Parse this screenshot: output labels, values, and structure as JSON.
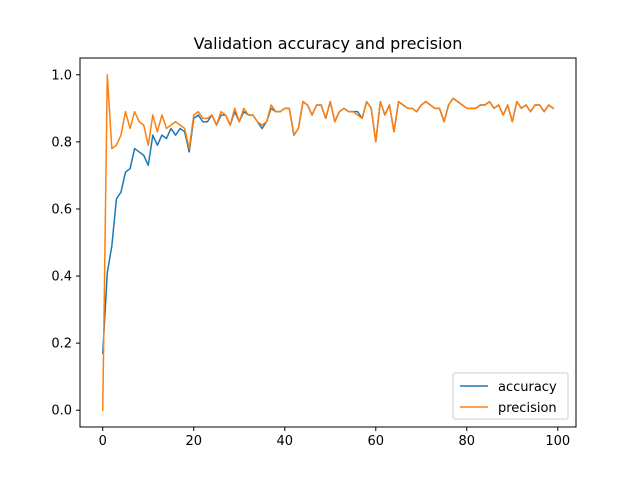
{
  "chart_data": {
    "type": "line",
    "title": "Validation accuracy and precision",
    "xlabel": "",
    "ylabel": "",
    "xlim": [
      -5,
      104
    ],
    "ylim": [
      -0.05,
      1.05
    ],
    "xticks": [
      0,
      20,
      40,
      60,
      80,
      100
    ],
    "yticks": [
      0.0,
      0.2,
      0.4,
      0.6,
      0.8,
      1.0
    ],
    "xtick_labels": [
      "0",
      "20",
      "40",
      "60",
      "80",
      "100"
    ],
    "ytick_labels": [
      "0.0",
      "0.2",
      "0.4",
      "0.6",
      "0.8",
      "1.0"
    ],
    "grid": false,
    "legend": {
      "placement": "lower-right"
    },
    "x": [
      0,
      1,
      2,
      3,
      4,
      5,
      6,
      7,
      8,
      9,
      10,
      11,
      12,
      13,
      14,
      15,
      16,
      17,
      18,
      19,
      20,
      21,
      22,
      23,
      24,
      25,
      26,
      27,
      28,
      29,
      30,
      31,
      32,
      33,
      34,
      35,
      36,
      37,
      38,
      39,
      40,
      41,
      42,
      43,
      44,
      45,
      46,
      47,
      48,
      49,
      50,
      51,
      52,
      53,
      54,
      55,
      56,
      57,
      58,
      59,
      60,
      61,
      62,
      63,
      64,
      65,
      66,
      67,
      68,
      69,
      70,
      71,
      72,
      73,
      74,
      75,
      76,
      77,
      78,
      79,
      80,
      81,
      82,
      83,
      84,
      85,
      86,
      87,
      88,
      89,
      90,
      91,
      92,
      93,
      94,
      95,
      96,
      97,
      98,
      99
    ],
    "series": [
      {
        "name": "accuracy",
        "color": "#1f77b4",
        "values": [
          0.17,
          0.41,
          0.49,
          0.63,
          0.65,
          0.71,
          0.72,
          0.78,
          0.77,
          0.76,
          0.73,
          0.82,
          0.79,
          0.82,
          0.81,
          0.84,
          0.82,
          0.84,
          0.83,
          0.77,
          0.87,
          0.88,
          0.86,
          0.86,
          0.88,
          0.85,
          0.88,
          0.88,
          0.85,
          0.89,
          0.86,
          0.89,
          0.88,
          0.88,
          0.86,
          0.84,
          0.86,
          0.9,
          0.89,
          0.89,
          0.9,
          0.9,
          0.82,
          0.84,
          0.92,
          0.91,
          0.88,
          0.91,
          0.91,
          0.87,
          0.92,
          0.86,
          0.89,
          0.9,
          0.89,
          0.89,
          0.89,
          0.87,
          0.92,
          0.9,
          0.8,
          0.92,
          0.88,
          0.91,
          0.83,
          0.92,
          0.91,
          0.9,
          0.9,
          0.89,
          0.91,
          0.92,
          0.91,
          0.9,
          0.9,
          0.86,
          0.91,
          0.93,
          0.92,
          0.91,
          0.9,
          0.9,
          0.9,
          0.91,
          0.91,
          0.92,
          0.9,
          0.91,
          0.88,
          0.91,
          0.86,
          0.92,
          0.9,
          0.91,
          0.89,
          0.91,
          0.91,
          0.89,
          0.91,
          0.9
        ]
      },
      {
        "name": "precision",
        "color": "#ff7f0e",
        "values": [
          0.0,
          1.0,
          0.78,
          0.79,
          0.82,
          0.89,
          0.84,
          0.89,
          0.86,
          0.85,
          0.79,
          0.88,
          0.83,
          0.88,
          0.84,
          0.85,
          0.86,
          0.85,
          0.84,
          0.78,
          0.88,
          0.89,
          0.87,
          0.87,
          0.88,
          0.85,
          0.89,
          0.88,
          0.85,
          0.9,
          0.86,
          0.9,
          0.88,
          0.88,
          0.86,
          0.85,
          0.86,
          0.91,
          0.89,
          0.89,
          0.9,
          0.9,
          0.82,
          0.84,
          0.92,
          0.91,
          0.88,
          0.91,
          0.91,
          0.87,
          0.92,
          0.86,
          0.89,
          0.9,
          0.89,
          0.89,
          0.88,
          0.87,
          0.92,
          0.9,
          0.8,
          0.92,
          0.88,
          0.91,
          0.83,
          0.92,
          0.91,
          0.9,
          0.9,
          0.89,
          0.91,
          0.92,
          0.91,
          0.9,
          0.9,
          0.86,
          0.91,
          0.93,
          0.92,
          0.91,
          0.9,
          0.9,
          0.9,
          0.91,
          0.91,
          0.92,
          0.9,
          0.91,
          0.88,
          0.91,
          0.86,
          0.92,
          0.9,
          0.91,
          0.89,
          0.91,
          0.91,
          0.89,
          0.91,
          0.9
        ]
      }
    ]
  }
}
